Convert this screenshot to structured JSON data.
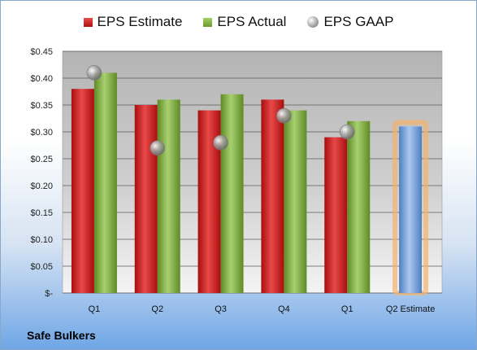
{
  "legend": {
    "estimate": "EPS Estimate",
    "actual": "EPS Actual",
    "gaap": "EPS GAAP"
  },
  "company": "Safe Bulkers",
  "colors": {
    "estimate": "#c81e1e",
    "actual": "#8ab547",
    "gaap": "#9a9a9a",
    "q2_estimate": "#7aa6dc",
    "highlight": "#f5b26a"
  },
  "chart_data": {
    "type": "bar",
    "categories": [
      "Q1",
      "Q2",
      "Q3",
      "Q4",
      "Q1",
      "Q2 Estimate"
    ],
    "series": [
      {
        "name": "EPS Estimate",
        "values": [
          0.38,
          0.35,
          0.34,
          0.36,
          0.29,
          0.31
        ]
      },
      {
        "name": "EPS Actual",
        "values": [
          0.41,
          0.36,
          0.37,
          0.34,
          0.32,
          null
        ]
      },
      {
        "name": "EPS GAAP",
        "values": [
          0.41,
          0.27,
          0.28,
          0.33,
          0.3,
          null
        ]
      }
    ],
    "y_ticks": [
      "$-",
      "$0.05",
      "$0.10",
      "$0.15",
      "$0.20",
      "$0.25",
      "$0.30",
      "$0.35",
      "$0.40",
      "$0.45"
    ],
    "ylim": [
      0,
      0.45
    ],
    "grid": true,
    "legend_position": "top"
  }
}
